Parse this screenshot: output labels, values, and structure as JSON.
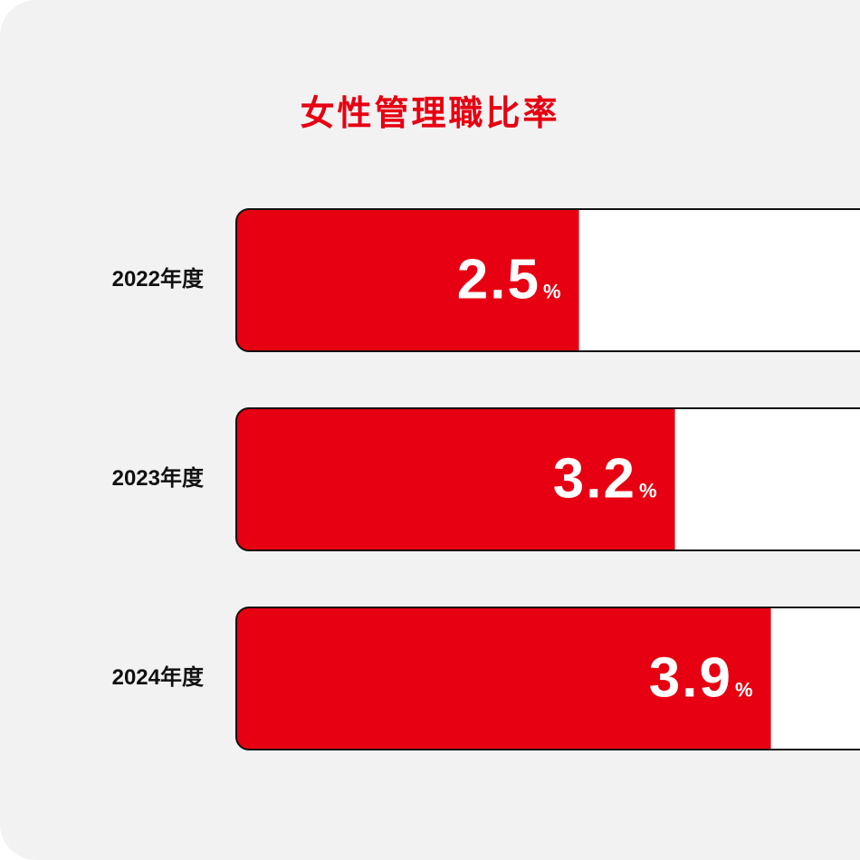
{
  "chart_data": {
    "type": "bar",
    "orientation": "horizontal",
    "title": "女性管理職比率",
    "categories": [
      "2022年度",
      "2023年度",
      "2024年度"
    ],
    "values": [
      2.5,
      3.2,
      3.9
    ],
    "value_unit": "%",
    "color": "#e60012",
    "track_color": "#ffffff",
    "xlim": [
      0,
      4.55
    ]
  }
}
